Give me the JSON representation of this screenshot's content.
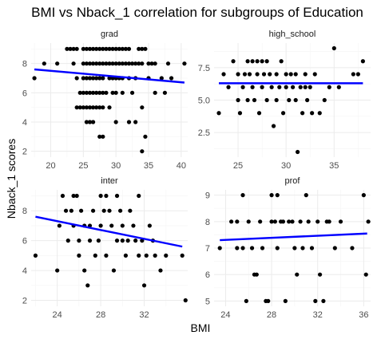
{
  "chart_data": {
    "type": "scatter",
    "title": "BMI vs Nback_1 correlation for subgroups of Education",
    "xlabel": "BMI",
    "ylabel": "Nback_1 scores",
    "facet_variable": "Education",
    "fit": "linear",
    "colors": {
      "points": "#000000",
      "fit_line": "#0000ff",
      "grid": "#ebebeb"
    },
    "panels": [
      {
        "label": "grad",
        "xlim": [
          17,
          41
        ],
        "ylim": [
          1.6,
          9.4
        ],
        "xticks": [
          20,
          25,
          30,
          35,
          40
        ],
        "yticks": [
          2,
          4,
          6,
          8
        ],
        "fit_line": {
          "x": [
            17.5,
            40.5
          ],
          "y": [
            7.6,
            6.7
          ]
        },
        "points": [
          [
            17.5,
            7
          ],
          [
            19,
            8
          ],
          [
            21,
            8
          ],
          [
            22.5,
            9
          ],
          [
            23,
            9
          ],
          [
            23.5,
            8
          ],
          [
            23.5,
            9
          ],
          [
            24,
            7
          ],
          [
            24,
            9
          ],
          [
            24.5,
            6
          ],
          [
            24,
            5
          ],
          [
            24.5,
            5
          ],
          [
            25,
            9
          ],
          [
            25,
            8
          ],
          [
            25,
            7
          ],
          [
            25,
            6
          ],
          [
            25,
            5
          ],
          [
            25.5,
            9
          ],
          [
            25.5,
            8
          ],
          [
            25.5,
            7
          ],
          [
            25.5,
            6
          ],
          [
            25.5,
            5
          ],
          [
            25.5,
            4
          ],
          [
            26,
            9
          ],
          [
            26,
            8
          ],
          [
            26,
            7
          ],
          [
            26,
            6
          ],
          [
            26,
            5
          ],
          [
            26,
            4
          ],
          [
            26.5,
            9
          ],
          [
            26.5,
            8
          ],
          [
            26.5,
            7
          ],
          [
            26.5,
            6
          ],
          [
            26.5,
            5
          ],
          [
            26.5,
            4
          ],
          [
            27,
            9
          ],
          [
            27,
            8
          ],
          [
            27,
            7
          ],
          [
            27,
            6
          ],
          [
            27,
            5
          ],
          [
            27.5,
            9
          ],
          [
            27.5,
            8
          ],
          [
            27.5,
            7
          ],
          [
            27.5,
            6
          ],
          [
            27.5,
            5
          ],
          [
            27.5,
            3
          ],
          [
            28,
            9
          ],
          [
            28,
            8
          ],
          [
            28,
            7
          ],
          [
            28,
            6
          ],
          [
            28,
            5
          ],
          [
            28,
            3
          ],
          [
            28.5,
            9
          ],
          [
            28.5,
            8
          ],
          [
            28.5,
            6
          ],
          [
            29,
            9
          ],
          [
            29,
            8
          ],
          [
            29,
            7
          ],
          [
            29,
            5
          ],
          [
            29.5,
            9
          ],
          [
            29.5,
            8
          ],
          [
            29.5,
            7
          ],
          [
            29.5,
            6
          ],
          [
            30,
            9
          ],
          [
            30,
            8
          ],
          [
            30,
            7
          ],
          [
            30,
            6
          ],
          [
            30,
            4
          ],
          [
            30.5,
            9
          ],
          [
            30.5,
            8
          ],
          [
            30.5,
            7
          ],
          [
            31,
            9
          ],
          [
            31,
            8
          ],
          [
            31,
            7
          ],
          [
            31,
            6
          ],
          [
            31.5,
            9
          ],
          [
            31.5,
            8
          ],
          [
            32,
            9
          ],
          [
            32,
            8
          ],
          [
            32,
            7
          ],
          [
            32,
            4
          ],
          [
            32.5,
            8
          ],
          [
            32.5,
            6
          ],
          [
            33,
            8
          ],
          [
            33,
            4
          ],
          [
            33,
            7
          ],
          [
            33.5,
            9
          ],
          [
            33.5,
            8
          ],
          [
            34,
            9
          ],
          [
            34,
            8
          ],
          [
            34,
            5
          ],
          [
            34,
            2
          ],
          [
            34.5,
            9
          ],
          [
            34.5,
            3
          ],
          [
            35,
            8
          ],
          [
            35,
            7
          ],
          [
            35.5,
            8
          ],
          [
            36,
            8
          ],
          [
            36,
            6
          ],
          [
            37,
            7
          ],
          [
            37.5,
            6
          ],
          [
            38,
            8
          ],
          [
            38.5,
            7
          ],
          [
            40.5,
            8
          ]
        ]
      },
      {
        "label": "high_school",
        "xlim": [
          22.5,
          38.8
        ],
        "ylim": [
          0.6,
          9.4
        ],
        "xticks": [
          25,
          30,
          35
        ],
        "yticks": [
          2.5,
          5.0,
          7.5
        ],
        "fit_line": {
          "x": [
            23,
            38
          ],
          "y": [
            6.3,
            6.3
          ]
        },
        "points": [
          [
            23,
            4
          ],
          [
            23.5,
            7
          ],
          [
            24,
            6
          ],
          [
            24.5,
            8
          ],
          [
            25,
            7
          ],
          [
            25,
            5
          ],
          [
            25.2,
            4
          ],
          [
            25.5,
            6
          ],
          [
            25.7,
            7
          ],
          [
            26,
            8
          ],
          [
            26,
            5
          ],
          [
            26.2,
            7
          ],
          [
            26.5,
            8
          ],
          [
            26.5,
            6
          ],
          [
            26.7,
            5
          ],
          [
            27,
            8
          ],
          [
            27,
            7
          ],
          [
            27.2,
            4
          ],
          [
            27.5,
            8
          ],
          [
            27.5,
            6
          ],
          [
            27.7,
            7
          ],
          [
            28,
            5
          ],
          [
            28,
            8
          ],
          [
            28.3,
            7
          ],
          [
            28.5,
            6
          ],
          [
            28.7,
            3
          ],
          [
            29,
            7
          ],
          [
            29,
            5
          ],
          [
            29.3,
            6
          ],
          [
            29.5,
            8
          ],
          [
            29.7,
            4
          ],
          [
            30,
            7
          ],
          [
            30,
            6
          ],
          [
            30.3,
            5
          ],
          [
            30.5,
            7
          ],
          [
            30.7,
            6
          ],
          [
            31,
            5
          ],
          [
            31,
            7
          ],
          [
            31.2,
            1
          ],
          [
            31.5,
            6
          ],
          [
            31.7,
            4
          ],
          [
            32,
            6
          ],
          [
            32,
            7
          ],
          [
            32.2,
            5
          ],
          [
            32.5,
            6
          ],
          [
            32.7,
            4
          ],
          [
            33,
            7
          ],
          [
            33.5,
            4
          ],
          [
            34,
            5
          ],
          [
            34.5,
            6
          ],
          [
            35,
            9
          ],
          [
            35.5,
            6
          ],
          [
            37,
            7
          ],
          [
            37.5,
            7
          ],
          [
            38,
            8
          ]
        ]
      },
      {
        "label": "inter",
        "xlim": [
          21.6,
          36
        ],
        "ylim": [
          1.6,
          9.4
        ],
        "xticks": [
          24,
          28,
          32
        ],
        "yticks": [
          2,
          4,
          6,
          8
        ],
        "fit_line": {
          "x": [
            22,
            35.5
          ],
          "y": [
            7.6,
            5.6
          ]
        },
        "points": [
          [
            22,
            5
          ],
          [
            24,
            4
          ],
          [
            24.2,
            7
          ],
          [
            24.5,
            9
          ],
          [
            24.8,
            8
          ],
          [
            25,
            6
          ],
          [
            25.3,
            8
          ],
          [
            25.5,
            9
          ],
          [
            25.5,
            7
          ],
          [
            25.8,
            9
          ],
          [
            26,
            6
          ],
          [
            26,
            5
          ],
          [
            26.2,
            8
          ],
          [
            26.5,
            7
          ],
          [
            26.5,
            4
          ],
          [
            26.8,
            3
          ],
          [
            27,
            7
          ],
          [
            27,
            6
          ],
          [
            27.3,
            8
          ],
          [
            27.5,
            5
          ],
          [
            27.8,
            6
          ],
          [
            28,
            9
          ],
          [
            28,
            7
          ],
          [
            28.3,
            8
          ],
          [
            28.5,
            9
          ],
          [
            28.5,
            5
          ],
          [
            28.8,
            8
          ],
          [
            29,
            7
          ],
          [
            29.2,
            4
          ],
          [
            29.5,
            9
          ],
          [
            29.5,
            6
          ],
          [
            29.8,
            8
          ],
          [
            30,
            7
          ],
          [
            30,
            6
          ],
          [
            30.3,
            5
          ],
          [
            30.5,
            6
          ],
          [
            30.7,
            8
          ],
          [
            31,
            7
          ],
          [
            31.2,
            6
          ],
          [
            31.5,
            9
          ],
          [
            31.5,
            5
          ],
          [
            31.8,
            6
          ],
          [
            32,
            3
          ],
          [
            32.2,
            5
          ],
          [
            32.5,
            7
          ],
          [
            32.8,
            6
          ],
          [
            33,
            5
          ],
          [
            33.5,
            4
          ],
          [
            34,
            5
          ],
          [
            35.5,
            5
          ],
          [
            35.8,
            2
          ]
        ]
      },
      {
        "label": "prof",
        "xlim": [
          23,
          36.6
        ],
        "ylim": [
          4.8,
          9.2
        ],
        "xticks": [
          24,
          28,
          32,
          36
        ],
        "yticks": [
          5,
          6,
          7,
          8,
          9
        ],
        "fit_line": {
          "x": [
            23.5,
            36.3
          ],
          "y": [
            7.3,
            7.55
          ]
        },
        "points": [
          [
            23.5,
            7
          ],
          [
            24.5,
            8
          ],
          [
            25,
            8
          ],
          [
            25,
            7
          ],
          [
            25.5,
            9
          ],
          [
            25.5,
            7
          ],
          [
            25.8,
            5
          ],
          [
            26,
            8
          ],
          [
            26.3,
            7
          ],
          [
            26.5,
            6
          ],
          [
            26.7,
            6
          ],
          [
            27,
            8
          ],
          [
            27.2,
            7
          ],
          [
            27.5,
            5
          ],
          [
            27.7,
            5
          ],
          [
            28,
            9
          ],
          [
            28,
            8
          ],
          [
            28.3,
            8
          ],
          [
            28.5,
            9
          ],
          [
            28.5,
            7
          ],
          [
            28.8,
            8
          ],
          [
            29,
            8
          ],
          [
            29.2,
            5
          ],
          [
            29.5,
            8
          ],
          [
            29.8,
            8
          ],
          [
            30,
            7
          ],
          [
            30.2,
            6
          ],
          [
            30.5,
            8
          ],
          [
            30.7,
            7
          ],
          [
            31,
            9
          ],
          [
            31.2,
            8
          ],
          [
            31.5,
            7
          ],
          [
            31.8,
            5
          ],
          [
            32,
            8
          ],
          [
            32.2,
            6
          ],
          [
            32.5,
            5
          ],
          [
            32.8,
            8
          ],
          [
            33,
            8
          ],
          [
            33.5,
            7
          ],
          [
            34,
            8
          ],
          [
            35,
            7
          ],
          [
            36,
            9
          ],
          [
            36.2,
            6
          ],
          [
            36.4,
            8
          ]
        ]
      }
    ]
  }
}
